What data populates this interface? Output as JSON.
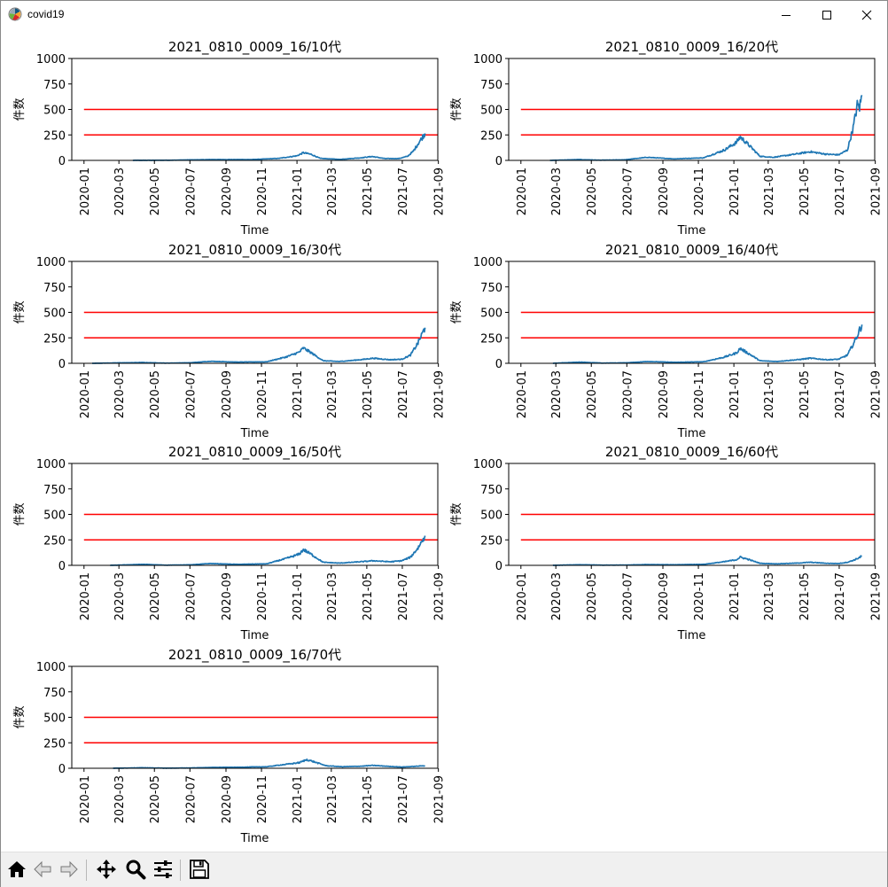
{
  "window": {
    "title": "covid19",
    "icons": {
      "app": "matplotlib-logo-icon",
      "minimize": "minimize-icon",
      "maximize": "maximize-icon",
      "close": "close-icon"
    }
  },
  "toolbar": {
    "buttons": [
      {
        "name": "home-button",
        "icon": "home-icon"
      },
      {
        "name": "back-button",
        "icon": "back-arrow-icon"
      },
      {
        "name": "forward-button",
        "icon": "forward-arrow-icon"
      },
      {
        "name": "pan-button",
        "icon": "move-icon"
      },
      {
        "name": "zoom-button",
        "icon": "magnifier-icon"
      },
      {
        "name": "configure-subplots-button",
        "icon": "sliders-icon"
      },
      {
        "name": "save-button",
        "icon": "floppy-disk-icon"
      }
    ]
  },
  "colors": {
    "series": "#1f77b4",
    "threshold": "#ff0000"
  },
  "chart_data": [
    {
      "type": "line",
      "title": "2021_0810_0009_16/10代",
      "xlabel": "Time",
      "ylabel": "件数",
      "xtick_labels": [
        "2020-01",
        "2020-03",
        "2020-05",
        "2020-07",
        "2020-09",
        "2020-11",
        "2021-01",
        "2021-03",
        "2021-05",
        "2021-07",
        "2021-09"
      ],
      "ylim": [
        0,
        1000
      ],
      "yticks": [
        0,
        250,
        500,
        750,
        1000
      ],
      "thresholds": [
        250,
        500
      ],
      "series_start": "2020-03-25",
      "series_end": "2021-08-09",
      "keypoints": [
        [
          "2020-03-25",
          0
        ],
        [
          "2020-06-01",
          2
        ],
        [
          "2020-08-05",
          8
        ],
        [
          "2020-10-15",
          8
        ],
        [
          "2020-12-01",
          20
        ],
        [
          "2021-01-01",
          45
        ],
        [
          "2021-01-12",
          75
        ],
        [
          "2021-01-25",
          60
        ],
        [
          "2021-02-10",
          20
        ],
        [
          "2021-03-15",
          10
        ],
        [
          "2021-04-20",
          25
        ],
        [
          "2021-05-10",
          38
        ],
        [
          "2021-06-01",
          18
        ],
        [
          "2021-06-25",
          18
        ],
        [
          "2021-07-10",
          40
        ],
        [
          "2021-07-20",
          90
        ],
        [
          "2021-07-30",
          180
        ],
        [
          "2021-08-09",
          265
        ]
      ]
    },
    {
      "type": "line",
      "title": "2021_0810_0009_16/20代",
      "xlabel": "Time",
      "ylabel": "件数",
      "xtick_labels": [
        "2020-01",
        "2020-03",
        "2020-05",
        "2020-07",
        "2020-09",
        "2020-11",
        "2021-01",
        "2021-03",
        "2021-05",
        "2021-07",
        "2021-09"
      ],
      "ylim": [
        0,
        1000
      ],
      "yticks": [
        0,
        250,
        500,
        750,
        1000
      ],
      "thresholds": [
        250,
        500
      ],
      "series_start": "2020-02-20",
      "series_end": "2021-08-09",
      "keypoints": [
        [
          "2020-02-20",
          0
        ],
        [
          "2020-04-10",
          8
        ],
        [
          "2020-05-15",
          2
        ],
        [
          "2020-06-25",
          5
        ],
        [
          "2020-08-05",
          30
        ],
        [
          "2020-09-20",
          15
        ],
        [
          "2020-11-10",
          25
        ],
        [
          "2020-12-15",
          100
        ],
        [
          "2021-01-05",
          175
        ],
        [
          "2021-01-12",
          230
        ],
        [
          "2021-01-25",
          160
        ],
        [
          "2021-02-15",
          40
        ],
        [
          "2021-03-10",
          30
        ],
        [
          "2021-04-15",
          60
        ],
        [
          "2021-05-12",
          85
        ],
        [
          "2021-06-10",
          60
        ],
        [
          "2021-06-30",
          55
        ],
        [
          "2021-07-15",
          100
        ],
        [
          "2021-07-25",
          320
        ],
        [
          "2021-08-01",
          540
        ],
        [
          "2021-08-05",
          520
        ],
        [
          "2021-08-09",
          640
        ]
      ]
    },
    {
      "type": "line",
      "title": "2021_0810_0009_16/30代",
      "xlabel": "Time",
      "ylabel": "件数",
      "xtick_labels": [
        "2020-01",
        "2020-03",
        "2020-05",
        "2020-07",
        "2020-09",
        "2020-11",
        "2021-01",
        "2021-03",
        "2021-05",
        "2021-07",
        "2021-09"
      ],
      "ylim": [
        0,
        1000
      ],
      "yticks": [
        0,
        250,
        500,
        750,
        1000
      ],
      "thresholds": [
        250,
        500
      ],
      "series_start": "2020-01-15",
      "series_end": "2021-08-09",
      "keypoints": [
        [
          "2020-01-15",
          0
        ],
        [
          "2020-04-10",
          8
        ],
        [
          "2020-05-20",
          2
        ],
        [
          "2020-07-01",
          5
        ],
        [
          "2020-08-05",
          20
        ],
        [
          "2020-09-20",
          12
        ],
        [
          "2020-11-10",
          15
        ],
        [
          "2020-12-15",
          65
        ],
        [
          "2021-01-05",
          110
        ],
        [
          "2021-01-12",
          150
        ],
        [
          "2021-01-25",
          105
        ],
        [
          "2021-02-15",
          25
        ],
        [
          "2021-03-15",
          18
        ],
        [
          "2021-04-20",
          35
        ],
        [
          "2021-05-12",
          50
        ],
        [
          "2021-06-10",
          35
        ],
        [
          "2021-06-30",
          40
        ],
        [
          "2021-07-15",
          80
        ],
        [
          "2021-07-28",
          200
        ],
        [
          "2021-08-09",
          350
        ]
      ]
    },
    {
      "type": "line",
      "title": "2021_0810_0009_16/40代",
      "xlabel": "Time",
      "ylabel": "件数",
      "xtick_labels": [
        "2020-01",
        "2020-03",
        "2020-05",
        "2020-07",
        "2020-09",
        "2020-11",
        "2021-01",
        "2021-03",
        "2021-05",
        "2021-07",
        "2021-09"
      ],
      "ylim": [
        0,
        1000
      ],
      "yticks": [
        0,
        250,
        500,
        750,
        1000
      ],
      "thresholds": [
        250,
        500
      ],
      "series_start": "2020-02-25",
      "series_end": "2021-08-09",
      "keypoints": [
        [
          "2020-02-25",
          0
        ],
        [
          "2020-04-12",
          12
        ],
        [
          "2020-05-20",
          2
        ],
        [
          "2020-07-01",
          5
        ],
        [
          "2020-08-05",
          18
        ],
        [
          "2020-09-20",
          10
        ],
        [
          "2020-11-10",
          15
        ],
        [
          "2020-12-15",
          60
        ],
        [
          "2021-01-05",
          100
        ],
        [
          "2021-01-12",
          145
        ],
        [
          "2021-01-25",
          100
        ],
        [
          "2021-02-15",
          25
        ],
        [
          "2021-03-15",
          18
        ],
        [
          "2021-04-20",
          35
        ],
        [
          "2021-05-12",
          50
        ],
        [
          "2021-06-10",
          35
        ],
        [
          "2021-06-30",
          40
        ],
        [
          "2021-07-15",
          80
        ],
        [
          "2021-07-28",
          220
        ],
        [
          "2021-08-09",
          380
        ]
      ]
    },
    {
      "type": "line",
      "title": "2021_0810_0009_16/50代",
      "xlabel": "Time",
      "ylabel": "件数",
      "xtick_labels": [
        "2020-01",
        "2020-03",
        "2020-05",
        "2020-07",
        "2020-09",
        "2020-11",
        "2021-01",
        "2021-03",
        "2021-05",
        "2021-07",
        "2021-09"
      ],
      "ylim": [
        0,
        1000
      ],
      "yticks": [
        0,
        250,
        500,
        750,
        1000
      ],
      "thresholds": [
        250,
        500
      ],
      "series_start": "2020-02-15",
      "series_end": "2021-08-09",
      "keypoints": [
        [
          "2020-02-15",
          0
        ],
        [
          "2020-04-12",
          10
        ],
        [
          "2020-05-20",
          2
        ],
        [
          "2020-07-01",
          5
        ],
        [
          "2020-08-05",
          18
        ],
        [
          "2020-09-20",
          10
        ],
        [
          "2020-11-10",
          15
        ],
        [
          "2020-12-15",
          70
        ],
        [
          "2021-01-05",
          110
        ],
        [
          "2021-01-12",
          155
        ],
        [
          "2021-01-25",
          110
        ],
        [
          "2021-02-15",
          30
        ],
        [
          "2021-03-15",
          22
        ],
        [
          "2021-04-20",
          35
        ],
        [
          "2021-05-12",
          45
        ],
        [
          "2021-06-10",
          35
        ],
        [
          "2021-06-30",
          45
        ],
        [
          "2021-07-15",
          80
        ],
        [
          "2021-07-28",
          170
        ],
        [
          "2021-08-09",
          290
        ]
      ]
    },
    {
      "type": "line",
      "title": "2021_0810_0009_16/60代",
      "xlabel": "Time",
      "ylabel": "件数",
      "xtick_labels": [
        "2020-01",
        "2020-03",
        "2020-05",
        "2020-07",
        "2020-09",
        "2020-11",
        "2021-01",
        "2021-03",
        "2021-05",
        "2021-07",
        "2021-09"
      ],
      "ylim": [
        0,
        1000
      ],
      "yticks": [
        0,
        250,
        500,
        750,
        1000
      ],
      "thresholds": [
        250,
        500
      ],
      "series_start": "2020-02-25",
      "series_end": "2021-08-09",
      "keypoints": [
        [
          "2020-02-25",
          0
        ],
        [
          "2020-04-12",
          6
        ],
        [
          "2020-05-20",
          2
        ],
        [
          "2020-07-01",
          3
        ],
        [
          "2020-08-05",
          8
        ],
        [
          "2020-09-20",
          6
        ],
        [
          "2020-11-10",
          10
        ],
        [
          "2020-12-15",
          35
        ],
        [
          "2021-01-05",
          55
        ],
        [
          "2021-01-12",
          80
        ],
        [
          "2021-01-25",
          60
        ],
        [
          "2021-02-15",
          20
        ],
        [
          "2021-03-15",
          15
        ],
        [
          "2021-04-20",
          22
        ],
        [
          "2021-05-12",
          30
        ],
        [
          "2021-06-10",
          20
        ],
        [
          "2021-06-30",
          18
        ],
        [
          "2021-07-15",
          30
        ],
        [
          "2021-07-28",
          55
        ],
        [
          "2021-08-09",
          90
        ]
      ]
    },
    {
      "type": "line",
      "title": "2021_0810_0009_16/70代",
      "xlabel": "Time",
      "ylabel": "件数",
      "xtick_labels": [
        "2020-01",
        "2020-03",
        "2020-05",
        "2020-07",
        "2020-09",
        "2020-11",
        "2021-01",
        "2021-03",
        "2021-05",
        "2021-07",
        "2021-09"
      ],
      "ylim": [
        0,
        1000
      ],
      "yticks": [
        0,
        250,
        500,
        750,
        1000
      ],
      "thresholds": [
        250,
        500
      ],
      "series_start": "2020-02-20",
      "series_end": "2021-08-09",
      "keypoints": [
        [
          "2020-02-20",
          0
        ],
        [
          "2020-04-12",
          5
        ],
        [
          "2020-05-20",
          1
        ],
        [
          "2020-07-01",
          3
        ],
        [
          "2020-08-05",
          8
        ],
        [
          "2020-09-20",
          10
        ],
        [
          "2020-11-10",
          15
        ],
        [
          "2020-12-15",
          40
        ],
        [
          "2021-01-05",
          55
        ],
        [
          "2021-01-18",
          85
        ],
        [
          "2021-02-01",
          60
        ],
        [
          "2021-02-20",
          25
        ],
        [
          "2021-03-20",
          15
        ],
        [
          "2021-04-20",
          20
        ],
        [
          "2021-05-12",
          28
        ],
        [
          "2021-06-10",
          18
        ],
        [
          "2021-06-30",
          12
        ],
        [
          "2021-07-20",
          18
        ],
        [
          "2021-08-09",
          25
        ]
      ]
    }
  ]
}
